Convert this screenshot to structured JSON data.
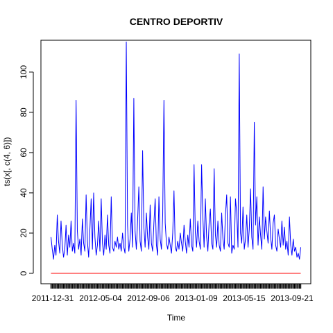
{
  "chart_data": {
    "type": "line",
    "title": "CENTRO DEPORTIV",
    "xlabel": "Time",
    "ylabel": "ts(x[, c(4, 6)])",
    "ylim": [
      0,
      115
    ],
    "y_ticks": [
      0,
      20,
      40,
      60,
      80,
      100
    ],
    "x_tick_labels": [
      "2011-12-31",
      "2012-05-04",
      "2012-09-06",
      "2013-01-09",
      "2013-05-15",
      "2013-09-21"
    ],
    "grid": false,
    "legend": "none",
    "series": [
      {
        "color": "#0000FF",
        "values": [
          18,
          12,
          7,
          14,
          9,
          29,
          16,
          10,
          26,
          14,
          8,
          12,
          24,
          9,
          19,
          13,
          26,
          11,
          15,
          10,
          86,
          21,
          12,
          17,
          9,
          27,
          15,
          11,
          39,
          16,
          8,
          22,
          37,
          12,
          40,
          18,
          9,
          14,
          26,
          11,
          37,
          15,
          9,
          19,
          12,
          29,
          14,
          10,
          38,
          13,
          11,
          16,
          13,
          18,
          12,
          15,
          11,
          20,
          13,
          10,
          115,
          24,
          11,
          17,
          30,
          13,
          87,
          21,
          12,
          26,
          43,
          16,
          11,
          61,
          23,
          13,
          30,
          18,
          12,
          34,
          15,
          11,
          25,
          37,
          14,
          9,
          38,
          17,
          12,
          29,
          86,
          25,
          15,
          12,
          18,
          14,
          10,
          20,
          41,
          13,
          11,
          16,
          12,
          20,
          15,
          11,
          24,
          16,
          10,
          19,
          13,
          27,
          14,
          11,
          54,
          20,
          13,
          26,
          16,
          12,
          54,
          28,
          13,
          37,
          18,
          11,
          25,
          32,
          15,
          12,
          52,
          19,
          13,
          26,
          14,
          11,
          30,
          17,
          12,
          29,
          39,
          15,
          13,
          38,
          10,
          14,
          12,
          37,
          30,
          13,
          109,
          20,
          15,
          33,
          12,
          17,
          29,
          13,
          22,
          42,
          18,
          12,
          75,
          24,
          38,
          14,
          28,
          19,
          12,
          43,
          17,
          28,
          21,
          15,
          31,
          18,
          12,
          25,
          29,
          14,
          11,
          22,
          17,
          13,
          26,
          14,
          23,
          12,
          16,
          9,
          28,
          14,
          9,
          17,
          11,
          13,
          8,
          10,
          7,
          13
        ]
      },
      {
        "color": "#FF0000",
        "values": [
          0,
          0
        ]
      }
    ]
  }
}
